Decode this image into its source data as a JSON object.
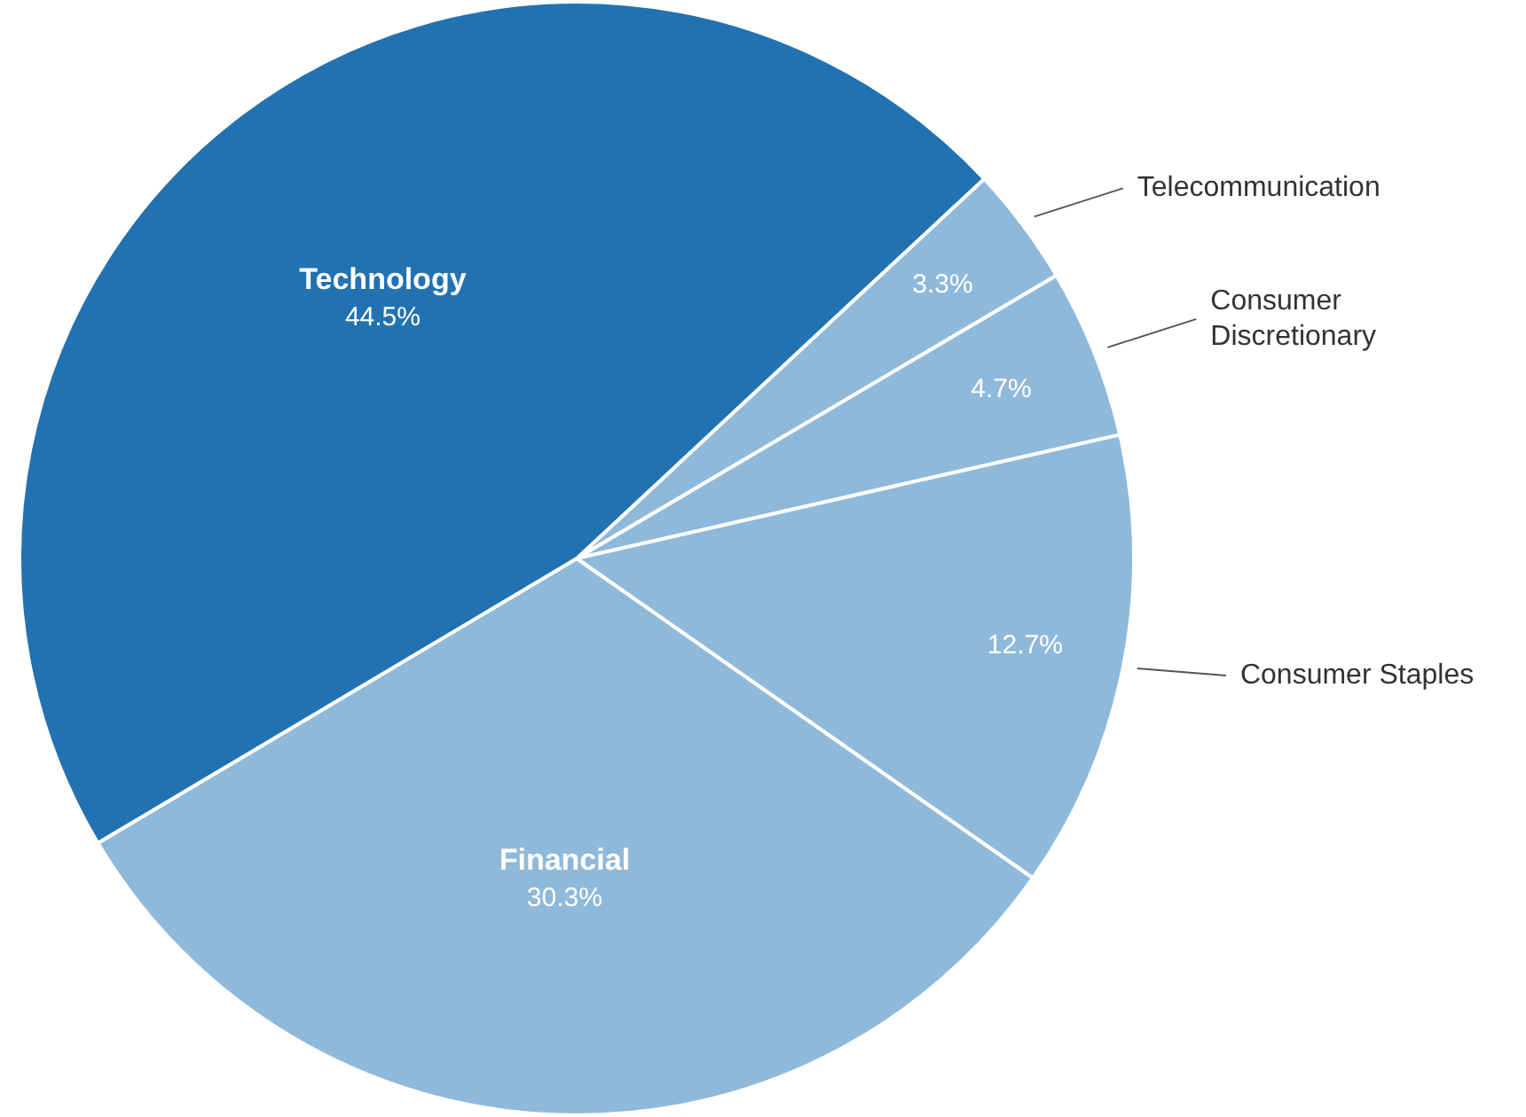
{
  "chart_data": {
    "type": "pie",
    "categories": [
      "Telecommunication",
      "Consumer Discretionary",
      "Consumer Staples",
      "Financial",
      "Technology"
    ],
    "values": [
      3.3,
      4.7,
      12.7,
      30.3,
      44.5
    ],
    "value_labels": [
      "3.3%",
      "4.7%",
      "12.7%",
      "30.3%",
      "44.5%"
    ],
    "colors": [
      "#8fb9da",
      "#8fb9da",
      "#8fb9da",
      "#8fb9da",
      "#2272b2"
    ],
    "legend": false
  }
}
